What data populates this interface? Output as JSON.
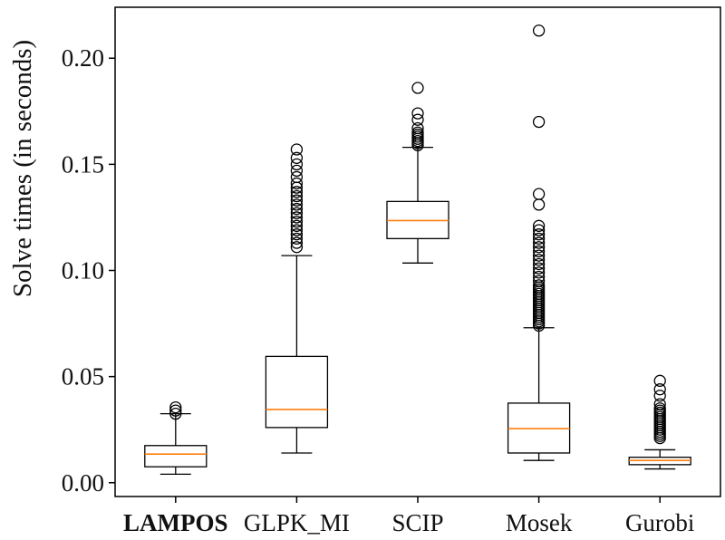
{
  "chart_data": {
    "type": "box",
    "ylabel": "Solve times (in seconds)",
    "ylim": [
      -0.0065,
      0.224
    ],
    "yticks": [
      {
        "value": 0.0,
        "label": "0.00"
      },
      {
        "value": 0.05,
        "label": "0.05"
      },
      {
        "value": 0.1,
        "label": "0.10"
      },
      {
        "value": 0.15,
        "label": "0.15"
      },
      {
        "value": 0.2,
        "label": "0.20"
      }
    ],
    "grid": false,
    "bold_categories": [
      "LAMPOS"
    ],
    "colors": {
      "box": "#000000",
      "median": "#ff7f0e",
      "outlier": "#000000"
    },
    "categories": [
      "LAMPOS",
      "GLPK_MI",
      "SCIP",
      "Mosek",
      "Gurobi"
    ],
    "boxes": [
      {
        "name": "LAMPOS",
        "whisker_low": 0.004,
        "q1": 0.0075,
        "median": 0.0135,
        "q3": 0.0175,
        "whisker_high": 0.0325,
        "outliers": [
          0.0325,
          0.034,
          0.0355
        ]
      },
      {
        "name": "GLPK_MI",
        "whisker_low": 0.014,
        "q1": 0.026,
        "median": 0.0345,
        "q3": 0.0595,
        "whisker_high": 0.107,
        "outliers": [
          0.111,
          0.113,
          0.115,
          0.117,
          0.119,
          0.121,
          0.123,
          0.125,
          0.127,
          0.129,
          0.131,
          0.133,
          0.135,
          0.137,
          0.139,
          0.141,
          0.144,
          0.147,
          0.15,
          0.153,
          0.157
        ]
      },
      {
        "name": "SCIP",
        "whisker_low": 0.1035,
        "q1": 0.115,
        "median": 0.1235,
        "q3": 0.1325,
        "whisker_high": 0.158,
        "outliers": [
          0.159,
          0.16,
          0.161,
          0.162,
          0.163,
          0.164,
          0.165,
          0.167,
          0.171,
          0.174,
          0.186
        ]
      },
      {
        "name": "Mosek",
        "whisker_low": 0.0105,
        "q1": 0.014,
        "median": 0.0255,
        "q3": 0.0375,
        "whisker_high": 0.073,
        "outliers": [
          0.074,
          0.075,
          0.076,
          0.077,
          0.078,
          0.079,
          0.08,
          0.081,
          0.082,
          0.083,
          0.084,
          0.085,
          0.086,
          0.087,
          0.088,
          0.089,
          0.09,
          0.091,
          0.092,
          0.093,
          0.095,
          0.097,
          0.099,
          0.101,
          0.103,
          0.105,
          0.107,
          0.109,
          0.111,
          0.113,
          0.115,
          0.117,
          0.119,
          0.121,
          0.131,
          0.136,
          0.17,
          0.213
        ]
      },
      {
        "name": "Gurobi",
        "whisker_low": 0.0065,
        "q1": 0.0085,
        "median": 0.0105,
        "q3": 0.012,
        "whisker_high": 0.0155,
        "outliers": [
          0.021,
          0.022,
          0.023,
          0.024,
          0.025,
          0.026,
          0.027,
          0.028,
          0.029,
          0.03,
          0.031,
          0.032,
          0.033,
          0.034,
          0.035,
          0.037,
          0.041,
          0.044,
          0.048
        ]
      }
    ]
  }
}
